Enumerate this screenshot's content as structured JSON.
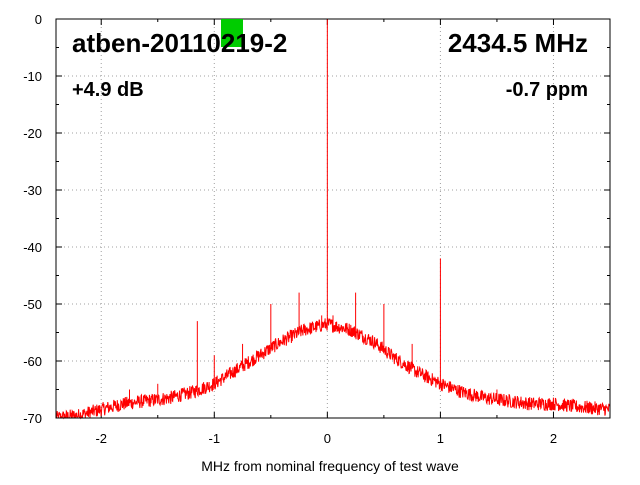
{
  "chart_data": {
    "type": "line",
    "xlabel": "MHz from nominal frequency of test wave",
    "ylabel": "",
    "xlim": [
      -2.4,
      2.5
    ],
    "ylim": [
      -70,
      0
    ],
    "x_ticks": [
      -2,
      -1,
      0,
      1,
      2
    ],
    "x_tick_labels": [
      "-2",
      "-1",
      "0",
      "1",
      "2"
    ],
    "y_ticks": [
      0,
      -10,
      -20,
      -30,
      -40,
      -50,
      -60,
      -70
    ],
    "y_tick_labels": [
      "0",
      "-10",
      "-20",
      "-30",
      "-40",
      "-50",
      "-60",
      "-70"
    ],
    "grid": true,
    "series": [
      {
        "color": "#ff0000",
        "noise_floor": {
          "x": [
            -2.4,
            -2.2,
            -2.0,
            -1.8,
            -1.6,
            -1.4,
            -1.2,
            -1.0,
            -0.8,
            -0.6,
            -0.4,
            -0.2,
            0.0,
            0.2,
            0.4,
            0.6,
            0.8,
            1.0,
            1.2,
            1.4,
            1.6,
            1.8,
            2.0,
            2.2,
            2.5
          ],
          "y": [
            -70,
            -69.5,
            -68.5,
            -67.5,
            -67,
            -66.5,
            -65.5,
            -64,
            -61.5,
            -59,
            -56.5,
            -54.5,
            -53.5,
            -54.5,
            -56.5,
            -59.5,
            -62,
            -64,
            -65.5,
            -66.5,
            -67,
            -67.5,
            -67.5,
            -68,
            -68.5
          ]
        },
        "spurs": [
          {
            "x": 0.0,
            "y": 0
          },
          {
            "x": 1.0,
            "y": -42
          },
          {
            "x": -0.25,
            "y": -48
          },
          {
            "x": 0.25,
            "y": -48
          },
          {
            "x": -0.5,
            "y": -50
          },
          {
            "x": 0.5,
            "y": -50
          },
          {
            "x": -1.15,
            "y": -53
          },
          {
            "x": -0.75,
            "y": -57
          },
          {
            "x": 0.75,
            "y": -57
          },
          {
            "x": -1.0,
            "y": -59
          },
          {
            "x": -1.5,
            "y": -64
          },
          {
            "x": -1.75,
            "y": -65
          },
          {
            "x": 1.5,
            "y": -65
          },
          {
            "x": -0.05,
            "y": -52
          },
          {
            "x": 0.05,
            "y": -52
          }
        ]
      }
    ],
    "annotations": {
      "device": "atben-20110219-2",
      "frequency": "2434.5 MHz",
      "gain": "+4.9 dB",
      "offset": "-0.7 ppm"
    },
    "status_marker_color": "#00cc00"
  }
}
